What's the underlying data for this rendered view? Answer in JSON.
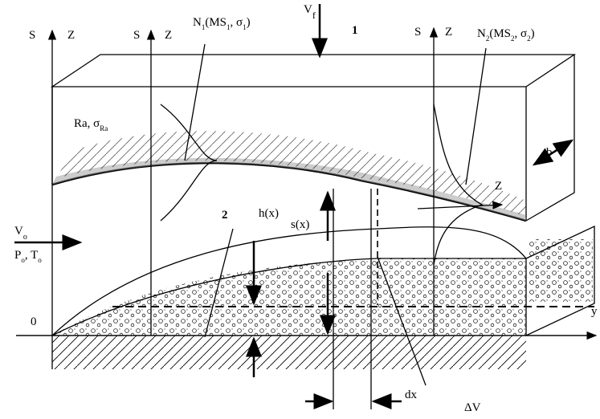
{
  "labels": [
    {
      "parts": [
        {
          "text": "S"
        }
      ]
    },
    {
      "parts": [
        {
          "text": "Z"
        }
      ]
    },
    {
      "parts": [
        {
          "text": "S"
        }
      ]
    },
    {
      "parts": [
        {
          "text": "Z"
        }
      ]
    },
    {
      "parts": [
        {
          "text": "N"
        },
        {
          "text": "1",
          "sub": true
        },
        {
          "text": "(MS"
        },
        {
          "text": "1",
          "sub": true
        },
        {
          "text": ", σ"
        },
        {
          "text": "1",
          "sub": true
        },
        {
          "text": ")"
        }
      ]
    },
    {
      "parts": [
        {
          "text": "V"
        },
        {
          "text": "f",
          "sub": true
        }
      ]
    },
    {
      "parts": [
        {
          "text": "1"
        }
      ]
    },
    {
      "parts": [
        {
          "text": "S"
        }
      ]
    },
    {
      "parts": [
        {
          "text": "Z"
        }
      ]
    },
    {
      "parts": [
        {
          "text": "N"
        },
        {
          "text": "2",
          "sub": true
        },
        {
          "text": "(MS"
        },
        {
          "text": "2",
          "sub": true
        },
        {
          "text": ", σ"
        },
        {
          "text": "2",
          "sub": true
        },
        {
          "text": ")"
        }
      ]
    },
    {
      "parts": [
        {
          "text": "Ra, σ"
        },
        {
          "text": "Ra",
          "sub": true
        }
      ]
    },
    {
      "parts": [
        {
          "text": "b"
        }
      ]
    },
    {
      "parts": [
        {
          "text": "Z"
        }
      ]
    },
    {
      "parts": [
        {
          "text": "2"
        }
      ]
    },
    {
      "parts": [
        {
          "text": "h(x)"
        }
      ]
    },
    {
      "parts": [
        {
          "text": "s(x)"
        }
      ]
    },
    {
      "parts": [
        {
          "text": "V"
        },
        {
          "text": "o",
          "sub": true
        }
      ]
    },
    {
      "parts": [
        {
          "text": "P"
        },
        {
          "text": "o",
          "sub": true
        },
        {
          "text": ", T"
        },
        {
          "text": "o",
          "sub": true
        }
      ]
    },
    {
      "parts": [
        {
          "text": "0"
        }
      ]
    },
    {
      "parts": [
        {
          "text": "y"
        }
      ]
    },
    {
      "parts": [
        {
          "text": "dx"
        }
      ]
    },
    {
      "parts": [
        {
          "text": "ΔV"
        }
      ]
    }
  ]
}
